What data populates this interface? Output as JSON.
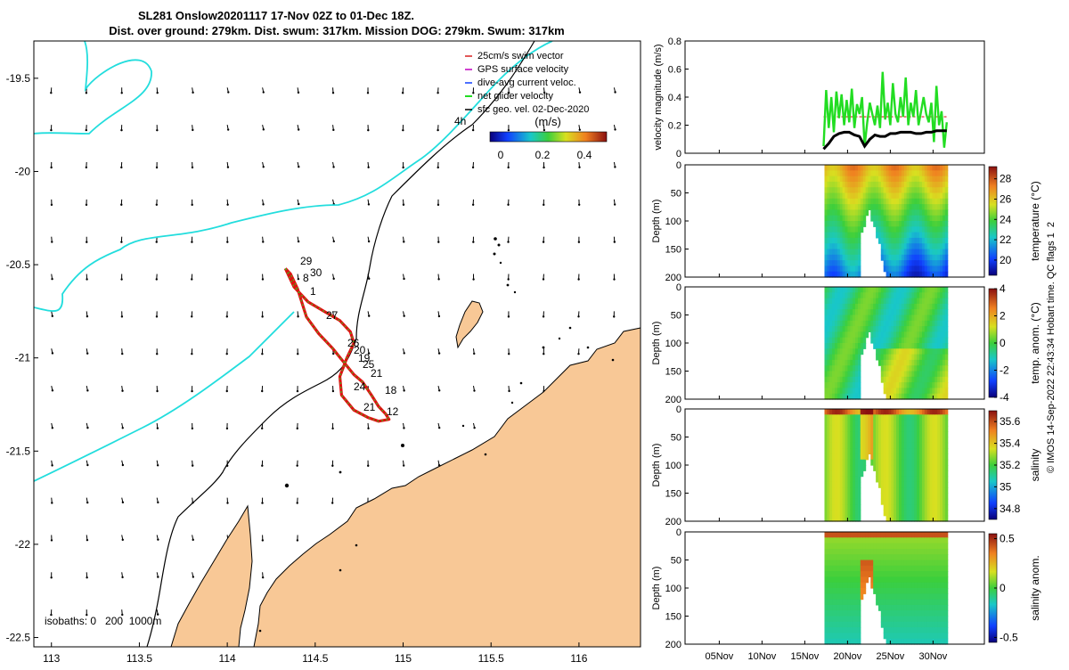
{
  "title": {
    "line1": "SL281 Onslow20201117 17-Nov 02Z to 01-Dec 18Z.",
    "line2": "Dist. over ground: 279km. Dist. swum: 317km. Mission DOG: 279km. Swum: 317km"
  },
  "map": {
    "isobaths_label": "isobaths: 0   200  1000m",
    "legend": [
      {
        "label": "25cm/s swim vector",
        "color": "#d92020"
      },
      {
        "label": "GPS surface velocity",
        "color": "#c000c0"
      },
      {
        "label": "dive-avg current veloc.",
        "color": "#1040ff"
      },
      {
        "label": "net glider velocity",
        "color": "#22dd22"
      },
      {
        "label": "sfc geo. vel. 02-Dec-2020",
        "color": "#000000"
      }
    ],
    "time_label": "4h",
    "colorbar": {
      "title": "(m/s)",
      "ticks": [
        "0",
        "0.2",
        "0.4"
      ]
    },
    "day_labels": [
      "29",
      "30",
      "8",
      "1",
      "27",
      "26",
      "20",
      "19",
      "25",
      "21",
      "24",
      "18",
      "21",
      "12"
    ],
    "colors": {
      "land": "#f8c896",
      "coast": "#000000",
      "isobath200": "#000000",
      "isobath1000": "#22dddd",
      "track": "#e01010"
    }
  },
  "chart_data": [
    {
      "type": "scatter",
      "title": "SL281 Onslow20201117 17-Nov 02Z to 01-Dec 18Z.",
      "xlabel": "",
      "ylabel": "",
      "xlim": [
        112.9,
        116.35
      ],
      "ylim": [
        -22.55,
        -19.3
      ],
      "x_ticks": [
        "113",
        "113.5",
        "114",
        "114.5",
        "115",
        "115.5",
        "116"
      ],
      "y_ticks": [
        "-19.5",
        "-20",
        "-20.5",
        "-21",
        "-21.5",
        "-22",
        "-22.5"
      ],
      "series": [
        {
          "name": "glider track",
          "x": [
            114.33,
            114.36,
            114.4,
            114.43,
            114.45,
            114.52,
            114.6,
            114.66,
            114.72,
            114.77,
            114.82,
            114.86,
            114.9,
            114.92,
            114.86,
            114.8,
            114.72,
            114.65,
            114.64,
            114.68,
            114.72,
            114.7,
            114.64,
            114.55,
            114.46,
            114.38,
            114.33
          ],
          "y": [
            -20.52,
            -20.55,
            -20.63,
            -20.72,
            -20.78,
            -20.87,
            -20.95,
            -21.02,
            -21.09,
            -21.13,
            -21.2,
            -21.26,
            -21.3,
            -21.33,
            -21.34,
            -21.32,
            -21.28,
            -21.2,
            -21.1,
            -21.0,
            -20.92,
            -20.86,
            -20.8,
            -20.75,
            -20.7,
            -20.62,
            -20.52
          ]
        }
      ]
    },
    {
      "type": "line",
      "ylabel": "velocity magnitude (m/s)",
      "ylim": [
        0,
        0.8
      ],
      "y_ticks": [
        "0",
        "0.2",
        "0.4",
        "0.6",
        "0.8"
      ],
      "series": [
        {
          "name": "net glider velocity",
          "color": "#22dd22",
          "x": [
            17.2,
            17.5,
            17.8,
            18.1,
            18.4,
            18.7,
            19.0,
            19.3,
            19.6,
            19.9,
            20.2,
            20.5,
            20.8,
            21.1,
            21.4,
            21.7,
            22.0,
            22.3,
            22.6,
            22.9,
            23.2,
            23.5,
            23.8,
            24.1,
            24.4,
            24.7,
            25.0,
            25.3,
            25.6,
            25.9,
            26.2,
            26.5,
            26.8,
            27.1,
            27.4,
            27.7,
            28.0,
            28.3,
            28.6,
            28.9,
            29.2,
            29.5,
            29.8,
            30.1,
            30.4,
            30.7,
            31.0,
            31.3,
            31.6
          ],
          "y": [
            0.05,
            0.45,
            0.18,
            0.4,
            0.15,
            0.44,
            0.25,
            0.42,
            0.2,
            0.38,
            0.22,
            0.46,
            0.18,
            0.35,
            0.28,
            0.4,
            0.05,
            0.22,
            0.36,
            0.28,
            0.2,
            0.34,
            0.18,
            0.58,
            0.24,
            0.36,
            0.2,
            0.5,
            0.28,
            0.22,
            0.4,
            0.26,
            0.54,
            0.2,
            0.36,
            0.26,
            0.45,
            0.2,
            0.3,
            0.4,
            0.28,
            0.22,
            0.36,
            0.08,
            0.48,
            0.2,
            0.3,
            0.04,
            0.22
          ]
        },
        {
          "name": "dive-avg current",
          "color": "#000000",
          "x": [
            17.2,
            17.8,
            18.4,
            19.0,
            19.6,
            20.2,
            20.8,
            21.4,
            22.0,
            22.6,
            23.2,
            23.8,
            24.4,
            25.0,
            25.6,
            26.2,
            26.8,
            27.4,
            28.0,
            28.6,
            29.2,
            29.8,
            30.4,
            31.0,
            31.6
          ],
          "y": [
            0.03,
            0.07,
            0.12,
            0.14,
            0.15,
            0.15,
            0.13,
            0.12,
            0.05,
            0.1,
            0.13,
            0.12,
            0.12,
            0.14,
            0.14,
            0.15,
            0.15,
            0.15,
            0.14,
            0.14,
            0.15,
            0.15,
            0.16,
            0.16,
            0.16
          ]
        },
        {
          "name": "swim",
          "color": "#d92020",
          "x": [
            17.2,
            31.6
          ],
          "y": [
            0.26,
            0.26
          ]
        }
      ]
    },
    {
      "type": "heatmap",
      "variable": "temperature (°C)",
      "ylabel": "Depth (m)",
      "ylim": [
        200,
        0
      ],
      "y_ticks": [
        "0",
        "50",
        "100",
        "150",
        "200"
      ],
      "colorbar_ticks": [
        "28",
        "26",
        "24",
        "22",
        "20"
      ],
      "clim": [
        18.5,
        29.2
      ]
    },
    {
      "type": "heatmap",
      "variable": "temp. anom. (°C)",
      "ylabel": "Depth (m)",
      "ylim": [
        200,
        0
      ],
      "y_ticks": [
        "0",
        "50",
        "100",
        "150",
        "200"
      ],
      "colorbar_ticks": [
        "4",
        "2",
        "0",
        "-2",
        "-4"
      ],
      "clim": [
        -4,
        4
      ]
    },
    {
      "type": "heatmap",
      "variable": "salinity",
      "ylabel": "Depth (m)",
      "ylim": [
        200,
        0
      ],
      "y_ticks": [
        "0",
        "50",
        "100",
        "150",
        "200"
      ],
      "colorbar_ticks": [
        "35.6",
        "35.4",
        "35.2",
        "35",
        "34.8"
      ],
      "clim": [
        34.7,
        35.7
      ]
    },
    {
      "type": "heatmap",
      "variable": "salinity anom.",
      "ylabel": "Depth (m)",
      "ylim": [
        200,
        0
      ],
      "y_ticks": [
        "0",
        "50",
        "100",
        "150",
        "200"
      ],
      "colorbar_ticks": [
        "0.5",
        "0",
        "-0.5"
      ],
      "clim": [
        -0.55,
        0.55
      ]
    }
  ],
  "time_axis": {
    "ticks": [
      "05Nov",
      "10Nov",
      "15Nov",
      "20Nov",
      "25Nov",
      "30Nov"
    ]
  },
  "side_label": "© IMOS 14-Sep-2022 22:43:34 Hobart time. QC flags 1  2",
  "panel_labels": {
    "velocity": "velocity magnitude (m/s)",
    "temperature": "temperature (°C)",
    "temp_anom": "temp. anom. (°C)",
    "salinity": "salinity",
    "sal_anom": "salinity anom.",
    "depth": "Depth (m)"
  }
}
